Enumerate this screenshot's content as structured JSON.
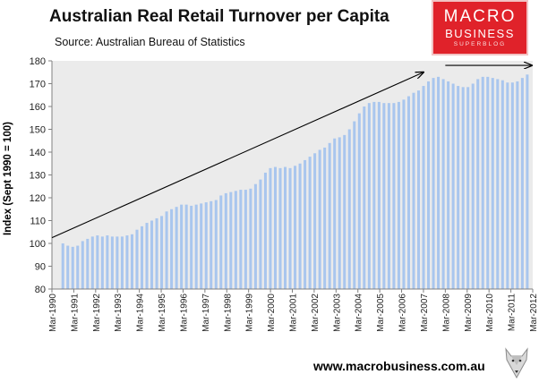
{
  "header": {
    "title": "Australian Real Retail Turnover per Capita",
    "subtitle": "Source: Australian Bureau of Statistics"
  },
  "logo": {
    "line1": "MACRO",
    "line2": "BUSINESS",
    "line3": "SUPERBLOG",
    "color": "#e0222a"
  },
  "footer": {
    "url": "www.macrobusiness.com.au",
    "icon": "wolf-logo-icon"
  },
  "chart_data": {
    "type": "bar",
    "ylabel": "Index (Sept 1990 = 100)",
    "ylim": [
      80,
      180
    ],
    "yticks": [
      80,
      90,
      100,
      110,
      120,
      130,
      140,
      150,
      160,
      170,
      180
    ],
    "grid": false,
    "background": "#ebebeb",
    "bar_color": "#a9c6ee",
    "x_labels": [
      "Mar-1990",
      "Mar-1991",
      "Mar-1992",
      "Mar-1993",
      "Mar-1994",
      "Mar-1995",
      "Mar-1996",
      "Mar-1997",
      "Mar-1998",
      "Mar-1999",
      "Mar-2000",
      "Mar-2001",
      "Mar-2002",
      "Mar-2003",
      "Mar-2004",
      "Mar-2005",
      "Mar-2006",
      "Mar-2007",
      "Mar-2008",
      "Mar-2009",
      "Mar-2010",
      "Mar-2011",
      "Mar-2012"
    ],
    "x_start": "Sep-1990",
    "x_end": "Dec-2011",
    "values": [
      100,
      99,
      98.5,
      99,
      101,
      102,
      103,
      103.5,
      103,
      103.5,
      103,
      103,
      103,
      103.5,
      104,
      106,
      107.5,
      109,
      110,
      111,
      112,
      114,
      115,
      116,
      117,
      117,
      116.5,
      117,
      117.5,
      118,
      118.5,
      119,
      121,
      122,
      122.5,
      123,
      123.5,
      123.5,
      124,
      126,
      128,
      131,
      133,
      133.5,
      133,
      133.5,
      133,
      134,
      135,
      136.5,
      138,
      139.5,
      141,
      142,
      144,
      146,
      146.5,
      147.5,
      150,
      153.5,
      157,
      160,
      161.5,
      162,
      162,
      161.5,
      161.5,
      161.5,
      162,
      163,
      164.5,
      166,
      167,
      169,
      171,
      172.5,
      173,
      172,
      171,
      170,
      169,
      168.5,
      168.5,
      170,
      172,
      173,
      173,
      172.5,
      172,
      171.5,
      170.5,
      170.5,
      171,
      172.5,
      174
    ],
    "annotations": [
      {
        "type": "arrow",
        "from": {
          "x": "Mar-1990",
          "y": 102.5
        },
        "to": {
          "x": "Mar-2007",
          "y": 175
        }
      },
      {
        "type": "arrow",
        "from": {
          "x": "Mar-2008",
          "y": 178
        },
        "to": {
          "x": "Mar-2012",
          "y": 178
        }
      }
    ]
  }
}
